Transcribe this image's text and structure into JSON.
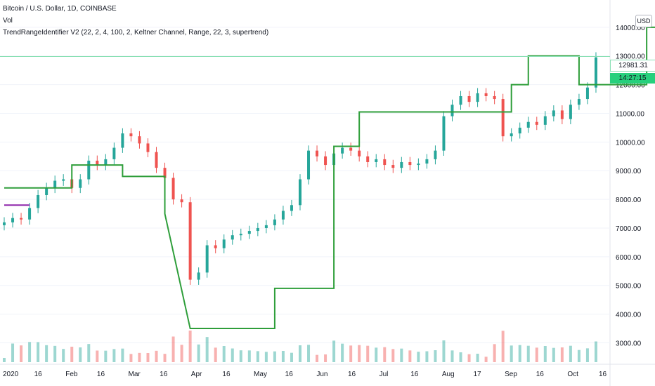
{
  "legend": {
    "title": "Bitcoin / U.S. Dollar, 1D, COINBASE",
    "vol": "Vol",
    "indicator": "TrendRangeIdentifier V2 (22, 2, 4, 100, 2, Keltner Channel, Range, 22, 3, supertrend)"
  },
  "price_scale": {
    "currency": "USD",
    "current_price": "12981.31",
    "countdown": "14:27:15"
  },
  "colors": {
    "up_candle": "#26a69a",
    "down_candle": "#ef5350",
    "trend_up": "#2e9e3a",
    "trend_down": "#e53935",
    "range": "#8e24aa",
    "fill": "#cfe9ea",
    "keltner_mid": "#8fc9c9"
  },
  "chart_data": {
    "type": "line",
    "title": "Bitcoin / U.S. Dollar, 1D, COINBASE",
    "ylim": [
      2400,
      15000
    ],
    "yticks": [
      "3000.00",
      "4000.00",
      "5000.00",
      "6000.00",
      "7000.00",
      "8000.00",
      "9000.00",
      "10000.00",
      "11000.00",
      "12000.00",
      "13000.00",
      "14000.00"
    ],
    "x_labels": [
      "2020",
      "16",
      "Feb",
      "16",
      "Mar",
      "16",
      "Apr",
      "16",
      "May",
      "16",
      "Jun",
      "16",
      "Jul",
      "16",
      "Aug",
      "17",
      "Sep",
      "16",
      "Oct",
      "16"
    ],
    "close": [
      7200,
      7350,
      7300,
      7700,
      8150,
      8400,
      8650,
      8700,
      8400,
      8700,
      9350,
      9200,
      9400,
      9800,
      10300,
      10200,
      9950,
      9650,
      9100,
      8750,
      8000,
      7900,
      5200,
      5450,
      6400,
      6300,
      6600,
      6750,
      6800,
      6900,
      7000,
      7100,
      7300,
      7600,
      7800,
      8700,
      9700,
      9500,
      9200,
      9600,
      9800,
      9700,
      9500,
      9300,
      9400,
      9200,
      9100,
      9300,
      9200,
      9250,
      9400,
      9700,
      10900,
      11300,
      11600,
      11400,
      11700,
      11600,
      11500,
      10200,
      10300,
      10500,
      10700,
      10600,
      10900,
      11100,
      10800,
      11300,
      11500,
      11900,
      12950
    ],
    "series": [
      {
        "name": "supertrend",
        "values": [
          [
            0,
            8400
          ],
          [
            8,
            8400
          ],
          [
            8,
            9200
          ],
          [
            14,
            9200
          ],
          [
            14,
            8800
          ],
          [
            19,
            8800
          ],
          [
            19,
            7500
          ],
          [
            22,
            3500
          ],
          [
            32,
            3500
          ],
          [
            32,
            4900
          ],
          [
            39,
            4900
          ],
          [
            39,
            9850
          ],
          [
            42,
            9850
          ],
          [
            42,
            11050
          ],
          [
            60,
            11050
          ],
          [
            60,
            12000
          ],
          [
            62,
            12000
          ],
          [
            62,
            13000
          ],
          [
            68,
            13000
          ],
          [
            68,
            12000
          ],
          [
            76,
            12000
          ],
          [
            76,
            14000
          ],
          [
            79,
            14000
          ]
        ]
      },
      {
        "name": "range",
        "values": [
          [
            0,
            7800
          ],
          [
            3,
            7800
          ]
        ]
      }
    ]
  }
}
